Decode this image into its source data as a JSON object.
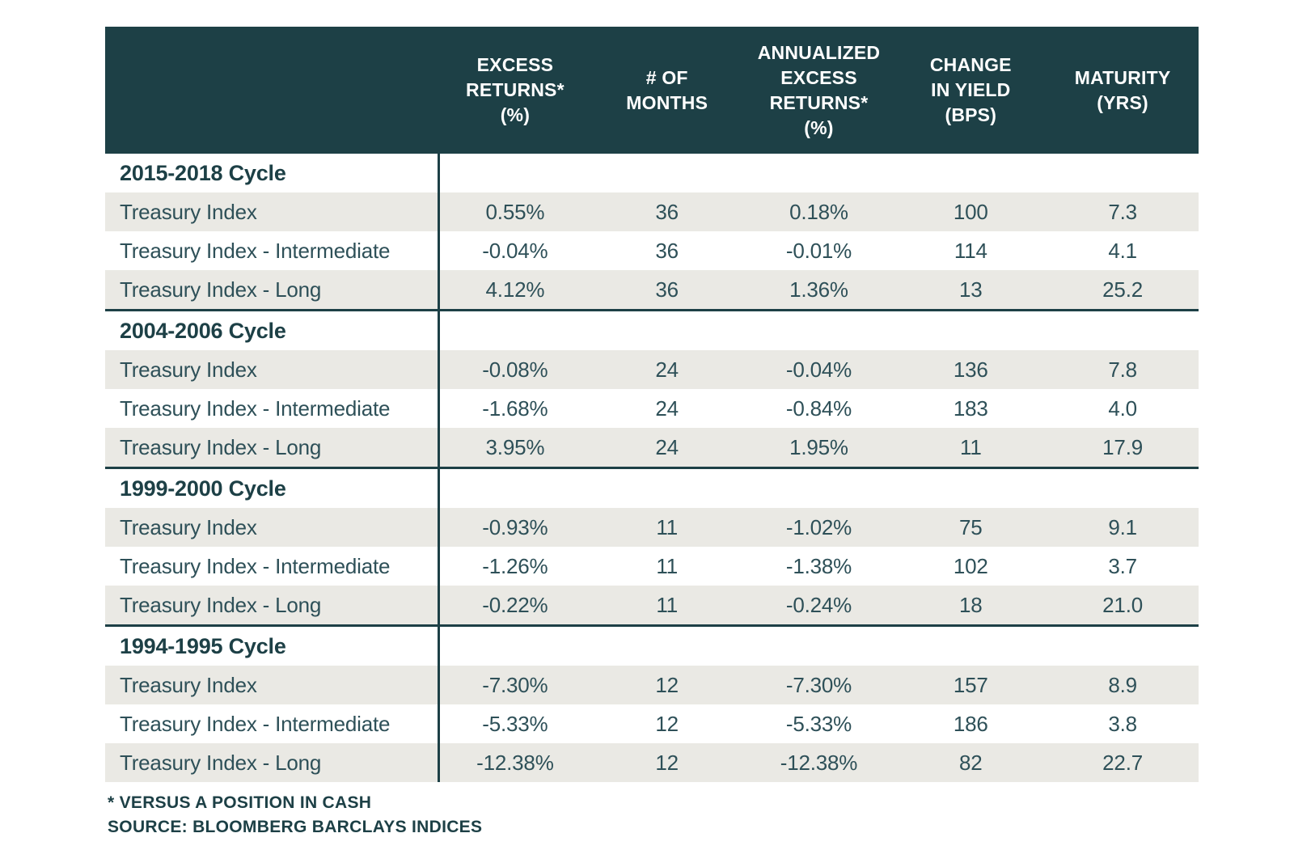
{
  "colors": {
    "header_bg": "#1d4046",
    "stripe_bg": "#eae9e4",
    "body_text": "#2e5058",
    "header_text": "#ffffff"
  },
  "chart_data": {
    "type": "table",
    "columns": [
      "EXCESS\nRETURNS*\n(%)",
      "# OF\nMONTHS",
      "ANNUALIZED\nEXCESS\nRETURNS*\n(%)",
      "CHANGE\nIN YIELD\n(BPS)",
      "MATURITY\n(YRS)"
    ],
    "sections": [
      {
        "title": "2015-2018 Cycle",
        "rows": [
          {
            "label": "Treasury Index",
            "values": [
              "0.55%",
              "36",
              "0.18%",
              "100",
              "7.3"
            ]
          },
          {
            "label": "Treasury Index - Intermediate",
            "values": [
              "-0.04%",
              "36",
              "-0.01%",
              "114",
              "4.1"
            ]
          },
          {
            "label": "Treasury Index - Long",
            "values": [
              "4.12%",
              "36",
              "1.36%",
              "13",
              "25.2"
            ]
          }
        ]
      },
      {
        "title": "2004-2006 Cycle",
        "rows": [
          {
            "label": "Treasury Index",
            "values": [
              "-0.08%",
              "24",
              "-0.04%",
              "136",
              "7.8"
            ]
          },
          {
            "label": "Treasury Index - Intermediate",
            "values": [
              "-1.68%",
              "24",
              "-0.84%",
              "183",
              "4.0"
            ]
          },
          {
            "label": "Treasury Index - Long",
            "values": [
              "3.95%",
              "24",
              "1.95%",
              "11",
              "17.9"
            ]
          }
        ]
      },
      {
        "title": "1999-2000 Cycle",
        "rows": [
          {
            "label": "Treasury Index",
            "values": [
              "-0.93%",
              "11",
              "-1.02%",
              "75",
              "9.1"
            ]
          },
          {
            "label": "Treasury Index - Intermediate",
            "values": [
              "-1.26%",
              "11",
              "-1.38%",
              "102",
              "3.7"
            ]
          },
          {
            "label": "Treasury Index - Long",
            "values": [
              "-0.22%",
              "11",
              "-0.24%",
              "18",
              "21.0"
            ]
          }
        ]
      },
      {
        "title": "1994-1995 Cycle",
        "rows": [
          {
            "label": "Treasury Index",
            "values": [
              "-7.30%",
              "12",
              "-7.30%",
              "157",
              "8.9"
            ]
          },
          {
            "label": "Treasury Index - Intermediate",
            "values": [
              "-5.33%",
              "12",
              "-5.33%",
              "186",
              "3.8"
            ]
          },
          {
            "label": "Treasury Index - Long",
            "values": [
              "-12.38%",
              "12",
              "-12.38%",
              "82",
              "22.7"
            ]
          }
        ]
      }
    ],
    "footnotes": [
      "* VERSUS A POSITION IN CASH",
      "SOURCE: BLOOMBERG BARCLAYS INDICES"
    ]
  }
}
